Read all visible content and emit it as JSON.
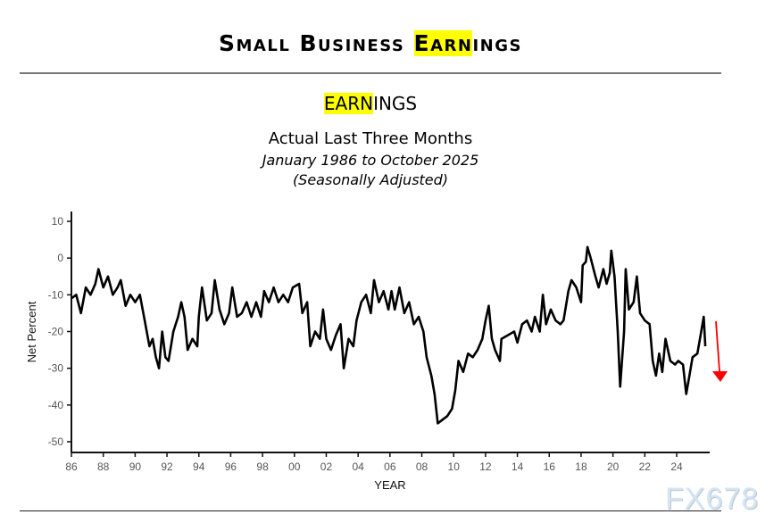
{
  "header": {
    "title_pre": "Small Business ",
    "title_hl": "Earn",
    "title_post": "ings",
    "highlight_color": "#ffff00"
  },
  "watermark": "FX678",
  "chart_data": {
    "type": "line",
    "title_hl": "EARN",
    "title_post": "INGS",
    "subtitle": "Actual Last Three Months",
    "date_range": "January 1986 to October 2025",
    "note": "(Seasonally Adjusted)",
    "xlabel": "YEAR",
    "ylabel": "Net Percent",
    "xlim": [
      1986,
      2026
    ],
    "ylim": [
      -53,
      13
    ],
    "x_ticks": [
      1986,
      1988,
      1990,
      1992,
      1994,
      1996,
      1998,
      2000,
      2002,
      2004,
      2006,
      2008,
      2010,
      2012,
      2014,
      2016,
      2018,
      2020,
      2022,
      2024
    ],
    "x_tick_labels": [
      "86",
      "88",
      "90",
      "92",
      "94",
      "96",
      "98",
      "00",
      "02",
      "04",
      "06",
      "08",
      "10",
      "12",
      "14",
      "16",
      "18",
      "20",
      "22",
      "24"
    ],
    "y_ticks": [
      10,
      0,
      -10,
      -20,
      -30,
      -40,
      -50
    ],
    "y_tick_labels": [
      "10",
      "0",
      "-10",
      "-20",
      "-30",
      "-40",
      "-50"
    ],
    "grid": false,
    "line_color": "#000000",
    "annotation": {
      "type": "arrow",
      "direction": "down",
      "color": "#ff0000"
    },
    "x": [
      1986.0,
      1986.3,
      1986.6,
      1986.9,
      1987.2,
      1987.5,
      1987.7,
      1988.0,
      1988.3,
      1988.6,
      1988.9,
      1989.1,
      1989.4,
      1989.7,
      1990.0,
      1990.3,
      1990.6,
      1990.9,
      1991.1,
      1991.3,
      1991.5,
      1991.7,
      1991.9,
      1992.1,
      1992.4,
      1992.7,
      1992.9,
      1993.1,
      1993.3,
      1993.6,
      1993.9,
      1994.0,
      1994.2,
      1994.5,
      1994.8,
      1995.0,
      1995.3,
      1995.6,
      1995.9,
      1996.1,
      1996.4,
      1996.7,
      1997.0,
      1997.3,
      1997.6,
      1997.9,
      1998.1,
      1998.4,
      1998.7,
      1999.0,
      1999.3,
      1999.6,
      1999.9,
      2000.3,
      2000.5,
      2000.8,
      2001.0,
      2001.3,
      2001.6,
      2001.8,
      2002.0,
      2002.3,
      2002.6,
      2002.9,
      2003.1,
      2003.4,
      2003.7,
      2003.9,
      2004.2,
      2004.5,
      2004.8,
      2005.0,
      2005.3,
      2005.6,
      2005.9,
      2006.1,
      2006.3,
      2006.6,
      2006.9,
      2007.2,
      2007.5,
      2007.8,
      2008.1,
      2008.3,
      2008.6,
      2008.8,
      2009.0,
      2009.3,
      2009.6,
      2009.9,
      2010.1,
      2010.3,
      2010.6,
      2010.9,
      2011.2,
      2011.5,
      2011.8,
      2012.0,
      2012.2,
      2012.4,
      2012.6,
      2012.9,
      2013.0,
      2013.4,
      2013.8,
      2014.0,
      2014.3,
      2014.6,
      2014.9,
      2015.1,
      2015.4,
      2015.6,
      2015.8,
      2016.1,
      2016.4,
      2016.7,
      2016.9,
      2017.2,
      2017.4,
      2017.7,
      2018.0,
      2018.1,
      2018.3,
      2018.4,
      2018.6,
      2018.9,
      2019.1,
      2019.4,
      2019.6,
      2019.8,
      2019.9,
      2020.1,
      2020.3,
      2020.45,
      2020.7,
      2020.8,
      2021.0,
      2021.3,
      2021.5,
      2021.7,
      2022.0,
      2022.3,
      2022.5,
      2022.7,
      2022.9,
      2023.1,
      2023.3,
      2023.6,
      2023.9,
      2024.1,
      2024.4,
      2024.6,
      2024.8,
      2025.0,
      2025.3,
      2025.5,
      2025.7,
      2025.8
    ],
    "y": [
      -11,
      -10,
      -15,
      -8,
      -10,
      -7,
      -3,
      -8,
      -5,
      -10,
      -8,
      -6,
      -13,
      -10,
      -12,
      -10,
      -17,
      -24,
      -22,
      -27,
      -30,
      -20,
      -27,
      -28,
      -20,
      -16,
      -12,
      -16,
      -25,
      -22,
      -24,
      -16,
      -8,
      -17,
      -15,
      -6,
      -14,
      -18,
      -15,
      -8,
      -16,
      -15,
      -12,
      -16,
      -12,
      -16,
      -9,
      -12,
      -8,
      -12,
      -10,
      -12,
      -8,
      -7,
      -15,
      -12,
      -24,
      -20,
      -22,
      -14,
      -22,
      -25,
      -21,
      -18,
      -30,
      -22,
      -24,
      -17,
      -12,
      -10,
      -15,
      -6,
      -12,
      -9,
      -14,
      -9,
      -14,
      -8,
      -15,
      -12,
      -18,
      -16,
      -20,
      -27,
      -32,
      -37,
      -45,
      -44,
      -43,
      -41,
      -36,
      -28,
      -31,
      -26,
      -27,
      -25,
      -22,
      -17,
      -13,
      -22,
      -25,
      -28,
      -22,
      -21,
      -20,
      -23,
      -18,
      -17,
      -20,
      -16,
      -20,
      -10,
      -18,
      -14,
      -17,
      -18,
      -17,
      -9,
      -6,
      -8,
      -12,
      -2,
      -1,
      3,
      0,
      -5,
      -8,
      -3,
      -7,
      -4,
      2,
      -5,
      -20,
      -35,
      -20,
      -3,
      -14,
      -12,
      -5,
      -15,
      -17,
      -18,
      -28,
      -32,
      -26,
      -31,
      -22,
      -28,
      -29,
      -28,
      -29,
      -37,
      -32,
      -27,
      -26,
      -21,
      -16,
      -24
    ]
  }
}
